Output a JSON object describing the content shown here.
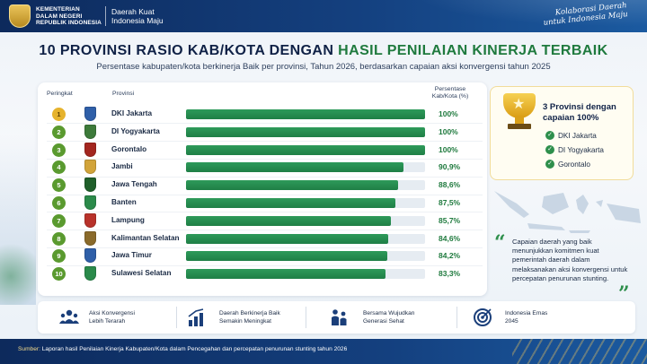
{
  "header": {
    "ministry_lines": [
      "KEMENTERIAN",
      "DALAM NEGERI",
      "REPUBLIK INDONESIA"
    ],
    "tagline_lines": [
      "Daerah Kuat",
      "Indonesia Maju"
    ],
    "kolaborasi_lines": [
      "Kolaborasi Daerah",
      "untuk Indonesia Maju"
    ]
  },
  "title": {
    "main": "10 PROVINSI RASIO KAB/KOTA DENGAN ",
    "highlight": "HASIL PENILAIAN KINERJA TERBAIK",
    "subtitle": "Persentase kabupaten/kota berkinerja Baik per provinsi, Tahun 2026, berdasarkan capaian aksi konvergensi tahun 2025"
  },
  "table": {
    "col_rank": "Peringkat",
    "col_province": "Provinsi",
    "col_pct_lines": [
      "Persentase",
      "Kab/Kota (%)"
    ]
  },
  "chart_data": {
    "type": "bar",
    "orientation": "horizontal",
    "categories": [
      "DKI Jakarta",
      "DI Yogyakarta",
      "Gorontalo",
      "Jambi",
      "Jawa Tengah",
      "Banten",
      "Lampung",
      "Kalimantan Selatan",
      "Jawa Timur",
      "Sulawesi Selatan"
    ],
    "ranks": [
      "1",
      "2",
      "3",
      "4",
      "5",
      "6",
      "7",
      "8",
      "9",
      "10"
    ],
    "values": [
      100,
      100,
      100,
      90.9,
      88.6,
      87.5,
      85.7,
      84.6,
      84.2,
      83.3
    ],
    "value_labels": [
      "100%",
      "100%",
      "100%",
      "90,9%",
      "88,6%",
      "87,5%",
      "85,7%",
      "84,6%",
      "84,2%",
      "83,3%"
    ],
    "xlim": [
      0,
      100
    ],
    "bar_color": "#238a4e",
    "track_color": "#e6ecf2",
    "rank_colors": [
      "#e6b32d",
      "#5a9a2f",
      "#5a9a2f",
      "#5a9a2f",
      "#5a9a2f",
      "#5a9a2f",
      "#5a9a2f",
      "#5a9a2f",
      "#5a9a2f",
      "#5a9a2f"
    ],
    "crest_colors": [
      "#2f5fa8",
      "#3d7a3a",
      "#a3261f",
      "#d2a43a",
      "#1f5f2a",
      "#2b8a4a",
      "#b8322a",
      "#8a6a2a",
      "#2f5fa8",
      "#2a8a4a"
    ]
  },
  "highlight_card": {
    "title_lines": [
      "3 Provinsi dengan",
      "capaian 100%"
    ],
    "items": [
      "DKI Jakarta",
      "DI Yogyakarta",
      "Gorontalo"
    ],
    "icon": "trophy-icon"
  },
  "quote": {
    "text": "Capaian daerah yang baik menunjukkan komitmen kuat pemerintah daerah dalam melaksanakan aksi konvergensi untuk percepatan penurunan stunting."
  },
  "features": [
    {
      "icon": "people-icon",
      "lines": [
        "Aksi Konvergensi",
        "Lebih Terarah"
      ]
    },
    {
      "icon": "growth-chart-icon",
      "lines": [
        "Daerah Berkinerja Baik",
        "Semakin Meningkat"
      ]
    },
    {
      "icon": "family-icon",
      "lines": [
        "Bersama Wujudkan",
        "Generasi Sehat"
      ]
    },
    {
      "icon": "target-icon",
      "lines": [
        "Indonesia Emas",
        "2045"
      ]
    }
  ],
  "footer": {
    "label": "Sumber:",
    "text": "Laporan hasil Penilaian Kinerja Kabupaten/Kota dalam Pencegahan dan percepatan penurunan stunting tahun 2026"
  },
  "colors": {
    "navy": "#0f2146",
    "green": "#1f7a3e",
    "gold": "#e6b32d"
  }
}
